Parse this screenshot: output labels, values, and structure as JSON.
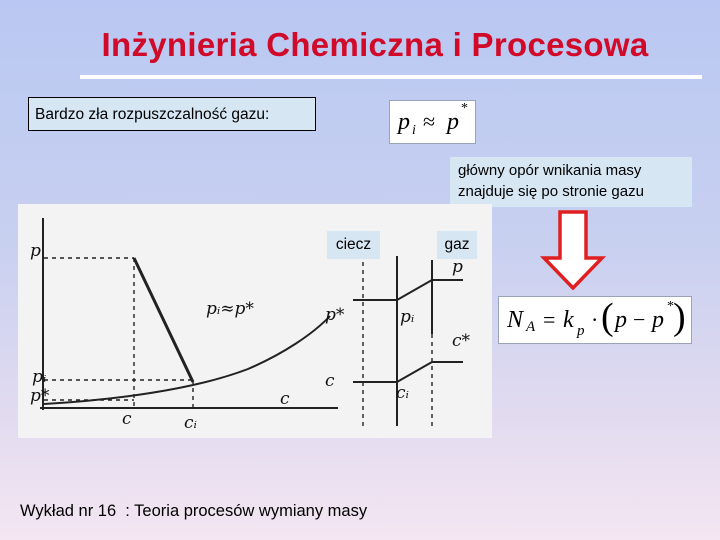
{
  "slide": {
    "title": "Inżynieria Chemiczna i Procesowa",
    "caption": "Bardzo zła rozpuszczalność gazu:",
    "note_line1": "główny opór wnikania masy",
    "note_line2": "znajduje się po stronie gazu",
    "footer": "Wykład nr 16  : Teoria procesów wymiany masy"
  },
  "formula1": {
    "lhs": "p",
    "lhs_sub": "i",
    "op": "≈",
    "rhs": "p",
    "rhs_sup": "*"
  },
  "formula2": {
    "lhs": "N",
    "lhs_sub": "A",
    "eq": "=",
    "k": "k",
    "k_sub": "p",
    "dot": "·",
    "open": "(",
    "p1": "p",
    "minus": "−",
    "p2": "p",
    "p2_sup": "*",
    "close": ")"
  },
  "phases": {
    "liquid": "ciecz",
    "gas": "gaz"
  },
  "diagram_labels": {
    "p_axis": "p",
    "pi_approx": "pᵢ≈p*",
    "pi_left": "pᵢ",
    "pstar_left": "p*",
    "c_curve": "c",
    "c_axis": "c",
    "ci_axis": "cᵢ",
    "pstar_prof": "p*",
    "pi_prof": "pᵢ",
    "c_prof": "c",
    "ci_prof": "cᵢ",
    "cstar_prof": "c*",
    "p_prof": "p"
  },
  "colors": {
    "title": "#d10a2a",
    "arrow": "#e02020",
    "box_bg": "#d7e6f3"
  }
}
